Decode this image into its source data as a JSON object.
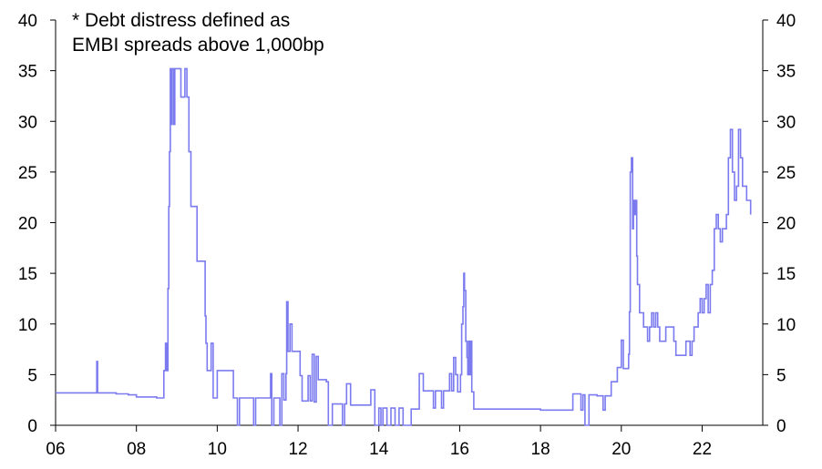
{
  "chart_data": {
    "type": "line",
    "title": "",
    "xlabel": "",
    "ylabel": "",
    "annotation_lines": [
      "* Debt distress defined as",
      "EMBI spreads above 1,000bp"
    ],
    "x_ticks": [
      "06",
      "08",
      "10",
      "12",
      "14",
      "16",
      "18",
      "20",
      "22"
    ],
    "y_ticks": [
      "0",
      "5",
      "10",
      "15",
      "20",
      "25",
      "30",
      "35",
      "40"
    ],
    "xlim": [
      2006,
      2023.5
    ],
    "ylim": [
      0,
      40
    ],
    "secondary_y_axis": true,
    "grid": false,
    "line_color": "#7b7bef",
    "series": [
      {
        "x": [
          2006.0,
          2007.0,
          2007.02,
          2007.04,
          2007.5,
          2007.8,
          2008.0,
          2008.5,
          2008.65,
          2008.68,
          2008.72,
          2008.75,
          2008.78,
          2008.8,
          2008.82,
          2008.84,
          2008.86,
          2008.88,
          2008.9,
          2008.92,
          2008.95,
          2008.98,
          2009.0,
          2009.05,
          2009.1,
          2009.15,
          2009.2,
          2009.25,
          2009.3,
          2009.35,
          2009.5,
          2009.6,
          2009.65,
          2009.7,
          2009.72,
          2009.75,
          2009.8,
          2009.85,
          2009.9,
          2010.0,
          2010.05,
          2010.4,
          2010.45,
          2010.5,
          2010.55,
          2010.6,
          2010.7,
          2010.75,
          2010.8,
          2010.85,
          2010.9,
          2010.95,
          2011.0,
          2011.3,
          2011.32,
          2011.35,
          2011.4,
          2011.45,
          2011.5,
          2011.55,
          2011.6,
          2011.65,
          2011.7,
          2011.72,
          2011.75,
          2011.8,
          2011.85,
          2011.9,
          2012.0,
          2012.05,
          2012.1,
          2012.2,
          2012.25,
          2012.3,
          2012.35,
          2012.4,
          2012.45,
          2012.5,
          2012.6,
          2012.7,
          2012.75,
          2012.8,
          2012.85,
          2012.9,
          2013.0,
          2013.1,
          2013.15,
          2013.2,
          2013.3,
          2013.4,
          2013.5,
          2013.6,
          2013.7,
          2013.75,
          2013.8,
          2013.9,
          2014.0,
          2014.05,
          2014.1,
          2014.2,
          2014.3,
          2014.4,
          2014.5,
          2014.6,
          2014.7,
          2014.8,
          2014.85,
          2014.9,
          2014.95,
          2015.0,
          2015.1,
          2015.3,
          2015.35,
          2015.4,
          2015.5,
          2015.55,
          2015.6,
          2015.7,
          2015.75,
          2015.8,
          2015.85,
          2015.9,
          2015.95,
          2016.0,
          2016.02,
          2016.05,
          2016.08,
          2016.1,
          2016.12,
          2016.15,
          2016.18,
          2016.2,
          2016.22,
          2016.25,
          2016.28,
          2016.3,
          2016.35,
          2016.4,
          2016.45,
          2016.5,
          2016.6,
          2017.0,
          2017.5,
          2018.0,
          2018.5,
          2018.6,
          2018.65,
          2018.8,
          2018.85,
          2018.9,
          2019.0,
          2019.05,
          2019.1,
          2019.2,
          2019.4,
          2019.5,
          2019.55,
          2019.6,
          2019.65,
          2019.7,
          2019.75,
          2019.8,
          2019.85,
          2019.9,
          2019.95,
          2020.0,
          2020.05,
          2020.1,
          2020.15,
          2020.18,
          2020.2,
          2020.22,
          2020.25,
          2020.28,
          2020.3,
          2020.32,
          2020.35,
          2020.38,
          2020.4,
          2020.45,
          2020.5,
          2020.55,
          2020.6,
          2020.65,
          2020.7,
          2020.75,
          2020.8,
          2020.85,
          2020.9,
          2020.95,
          2021.0,
          2021.1,
          2021.2,
          2021.3,
          2021.35,
          2021.4,
          2021.5,
          2021.6,
          2021.7,
          2021.75,
          2021.8,
          2021.85,
          2021.9,
          2021.95,
          2022.0,
          2022.05,
          2022.1,
          2022.15,
          2022.2,
          2022.25,
          2022.3,
          2022.35,
          2022.4,
          2022.45,
          2022.5,
          2022.55,
          2022.6,
          2022.65,
          2022.7,
          2022.75,
          2022.8,
          2022.85,
          2022.9,
          2022.95,
          2023.0,
          2023.1,
          2023.2
        ],
        "values": [
          3.2,
          3.2,
          6.3,
          3.2,
          3.1,
          3.0,
          2.8,
          2.7,
          2.7,
          5.4,
          8.1,
          5.4,
          13.5,
          21.6,
          27.0,
          35.2,
          29.7,
          35.2,
          35.2,
          29.7,
          35.2,
          35.2,
          35.2,
          35.2,
          32.4,
          32.4,
          35.2,
          32.4,
          27.0,
          21.6,
          16.2,
          16.2,
          16.2,
          10.8,
          8.1,
          5.4,
          5.4,
          8.1,
          2.7,
          5.4,
          5.4,
          2.7,
          2.7,
          0.0,
          2.7,
          2.7,
          2.7,
          2.7,
          2.7,
          2.7,
          0.0,
          2.7,
          2.7,
          2.7,
          5.1,
          0.0,
          2.7,
          2.7,
          2.7,
          0.0,
          5.1,
          2.5,
          5.1,
          12.2,
          7.3,
          10.0,
          7.3,
          7.3,
          7.3,
          4.9,
          2.4,
          2.4,
          4.9,
          2.4,
          7.0,
          2.3,
          6.8,
          4.5,
          4.5,
          4.3,
          0.0,
          0.0,
          2.1,
          2.1,
          2.1,
          0.0,
          2.1,
          4.1,
          2.0,
          2.0,
          2.0,
          2.0,
          2.0,
          2.0,
          3.5,
          0.0,
          1.7,
          0.0,
          1.7,
          0.0,
          1.7,
          0.0,
          1.7,
          0.0,
          0.0,
          1.6,
          1.6,
          1.6,
          1.6,
          5.1,
          3.4,
          3.4,
          1.7,
          3.4,
          3.4,
          1.7,
          3.4,
          3.4,
          5.1,
          3.4,
          6.7,
          5.0,
          3.3,
          3.3,
          5.0,
          10.0,
          11.7,
          15.0,
          13.3,
          8.3,
          6.7,
          5.0,
          8.3,
          5.0,
          8.3,
          3.3,
          1.6,
          1.6,
          1.6,
          1.6,
          1.6,
          1.6,
          1.6,
          1.5,
          1.5,
          1.5,
          1.5,
          3.1,
          3.1,
          3.1,
          1.5,
          3.0,
          0.0,
          3.0,
          2.9,
          2.9,
          1.5,
          2.9,
          2.9,
          2.9,
          4.3,
          4.3,
          4.3,
          5.7,
          5.7,
          8.4,
          5.6,
          5.6,
          5.6,
          7.0,
          11.2,
          25.0,
          26.4,
          19.4,
          22.2,
          20.8,
          22.2,
          16.7,
          13.9,
          11.1,
          11.1,
          9.7,
          9.7,
          8.3,
          9.7,
          11.1,
          9.7,
          11.1,
          9.7,
          8.3,
          8.3,
          9.7,
          9.7,
          8.3,
          6.9,
          6.9,
          6.9,
          8.3,
          6.9,
          8.3,
          9.7,
          9.7,
          11.1,
          12.5,
          11.1,
          12.5,
          13.9,
          11.1,
          13.9,
          15.3,
          19.4,
          20.8,
          19.4,
          18.1,
          19.4,
          19.4,
          20.8,
          26.4,
          29.2,
          25.0,
          22.2,
          23.6,
          29.2,
          26.4,
          23.6,
          22.2,
          20.8
        ]
      }
    ]
  }
}
